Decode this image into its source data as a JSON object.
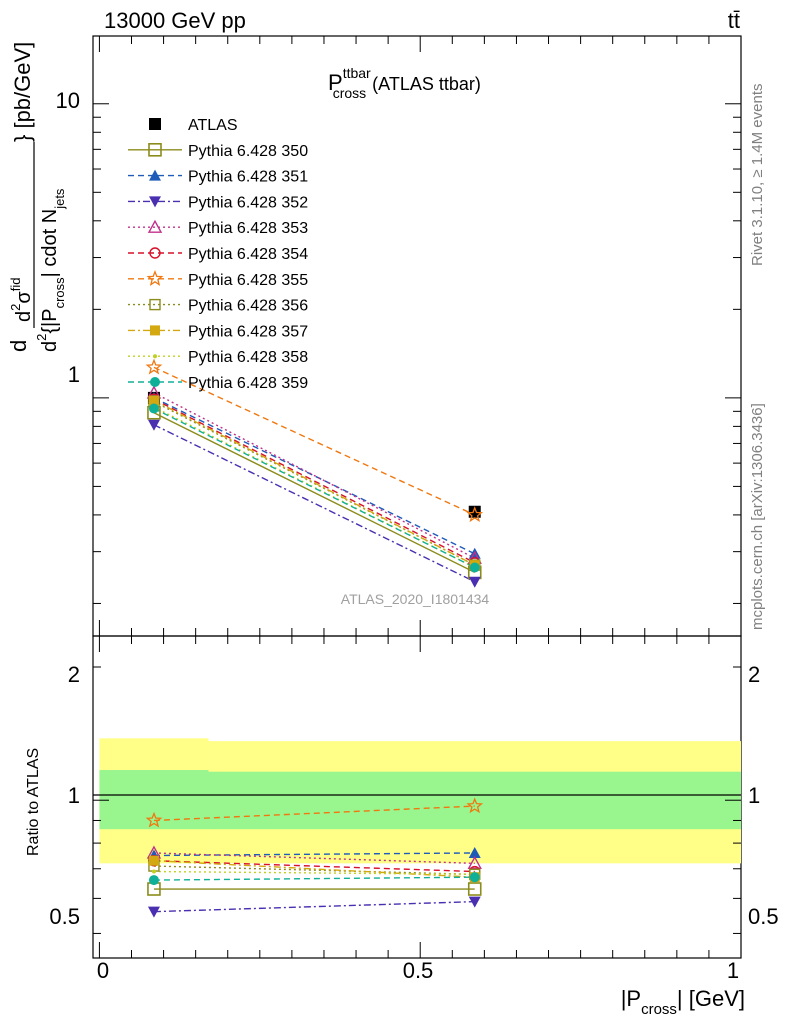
{
  "header": {
    "energy_label": "13000 GeV pp",
    "process_label": "tt̄"
  },
  "plot_title": {
    "main": "P",
    "sup": "ttbar",
    "sub": "cross",
    "suffix": "(ATLAS ttbar)"
  },
  "side_labels": {
    "rivet": "Rivet 3.1.10, ≥ 1.4M events",
    "mcplots": "mcplots.cern.ch [arXiv:1306.3436]"
  },
  "watermark": "ATLAS_2020_I1801434",
  "y_axis_main": {
    "frac_num_prefix": "d",
    "frac_num_sup": "2",
    "frac_num_core": "σ",
    "frac_num_core_sup": "fid",
    "frac_den_prefix": "d",
    "frac_den_sup": "2",
    "frac_den_body": "{|P",
    "frac_den_sub": "cross",
    "frac_den_mid": "| cdot N",
    "frac_den_sub2": "jets",
    "units": "} [pb/GeV]"
  },
  "y_axis_ratio": {
    "label": "Ratio to ATLAS"
  },
  "x_axis": {
    "label_pre": "|P",
    "label_sub": "cross",
    "label_post": "| [GeV]"
  },
  "chart_data": [
    {
      "type": "scatter",
      "scale": "log",
      "ylim": [
        0.155,
        17
      ],
      "xlim": [
        -0.01,
        1.0
      ],
      "ticks_y": [
        "1",
        "10"
      ],
      "x": [
        0.085,
        0.585
      ],
      "series": [
        {
          "name": "ATLAS",
          "values": [
            1.0,
            0.41
          ],
          "color": "#000000",
          "marker": "filled-square",
          "dash": "none"
        },
        {
          "name": "Pythia 6.428 350",
          "values": [
            0.89,
            0.255
          ],
          "color": "#8c8c1c",
          "marker": "open-square",
          "dash": "solid"
        },
        {
          "name": "Pythia 6.428 351",
          "values": [
            1.0,
            0.295
          ],
          "color": "#1f5bb8",
          "marker": "filled-triangle-up",
          "dash": "dashed"
        },
        {
          "name": "Pythia 6.428 352",
          "values": [
            0.81,
            0.237
          ],
          "color": "#4a2fb0",
          "marker": "filled-triangle-down",
          "dash": "dashdot"
        },
        {
          "name": "Pythia 6.428 353",
          "values": [
            1.04,
            0.285
          ],
          "color": "#c0308a",
          "marker": "open-triangle-up",
          "dash": "dotted"
        },
        {
          "name": "Pythia 6.428 354",
          "values": [
            0.99,
            0.275
          ],
          "color": "#d8102a",
          "marker": "open-circle",
          "dash": "dashed"
        },
        {
          "name": "Pythia 6.428 355",
          "values": [
            1.27,
            0.4
          ],
          "color": "#f07810",
          "marker": "open-star",
          "dash": "dashed"
        },
        {
          "name": "Pythia 6.428 356",
          "values": [
            0.97,
            0.27
          ],
          "color": "#8c8c1c",
          "marker": "open-square-small",
          "dash": "dotted"
        },
        {
          "name": "Pythia 6.428 357",
          "values": [
            0.98,
            0.27
          ],
          "color": "#d4a810",
          "marker": "filled-square-small",
          "dash": "dashdot"
        },
        {
          "name": "Pythia 6.428 358",
          "values": [
            0.93,
            0.265
          ],
          "color": "#c0d020",
          "marker": "dot",
          "dash": "dotted"
        },
        {
          "name": "Pythia 6.428 359",
          "values": [
            0.92,
            0.265
          ],
          "color": "#10b098",
          "marker": "filled-circle",
          "dash": "dashed"
        }
      ]
    },
    {
      "type": "scatter",
      "scale": "log",
      "ylim": [
        0.44,
        2.35
      ],
      "xlim": [
        -0.01,
        1.0
      ],
      "ticks_y": [
        "0.5",
        "1",
        "2"
      ],
      "ticks_x": [
        "0",
        "0.5",
        "1"
      ],
      "reference_line": 1.0,
      "bands": [
        {
          "name": "outer",
          "color": "#ffff88",
          "segments": [
            [
              0,
              0.17,
              0.72,
              1.38
            ],
            [
              0.17,
              1.0,
              0.72,
              1.36
            ]
          ]
        },
        {
          "name": "inner",
          "color": "#99f58e",
          "segments": [
            [
              0,
              0.17,
              0.86,
              1.17
            ],
            [
              0.17,
              1.0,
              0.86,
              1.16
            ]
          ]
        }
      ],
      "x": [
        0.085,
        0.585
      ],
      "series": [
        {
          "name": "Pythia 6.428 350",
          "values": [
            0.63,
            0.63
          ]
        },
        {
          "name": "Pythia 6.428 351",
          "values": [
            0.75,
            0.76
          ]
        },
        {
          "name": "Pythia 6.428 352",
          "values": [
            0.56,
            0.59
          ]
        },
        {
          "name": "Pythia 6.428 353",
          "values": [
            0.76,
            0.72
          ]
        },
        {
          "name": "Pythia 6.428 354",
          "values": [
            0.73,
            0.69
          ]
        },
        {
          "name": "Pythia 6.428 355",
          "values": [
            0.9,
            0.97
          ]
        },
        {
          "name": "Pythia 6.428 356",
          "values": [
            0.71,
            0.68
          ]
        },
        {
          "name": "Pythia 6.428 357",
          "values": [
            0.73,
            0.67
          ]
        },
        {
          "name": "Pythia 6.428 358",
          "values": [
            0.69,
            0.68
          ]
        },
        {
          "name": "Pythia 6.428 359",
          "values": [
            0.66,
            0.67
          ]
        }
      ]
    }
  ]
}
